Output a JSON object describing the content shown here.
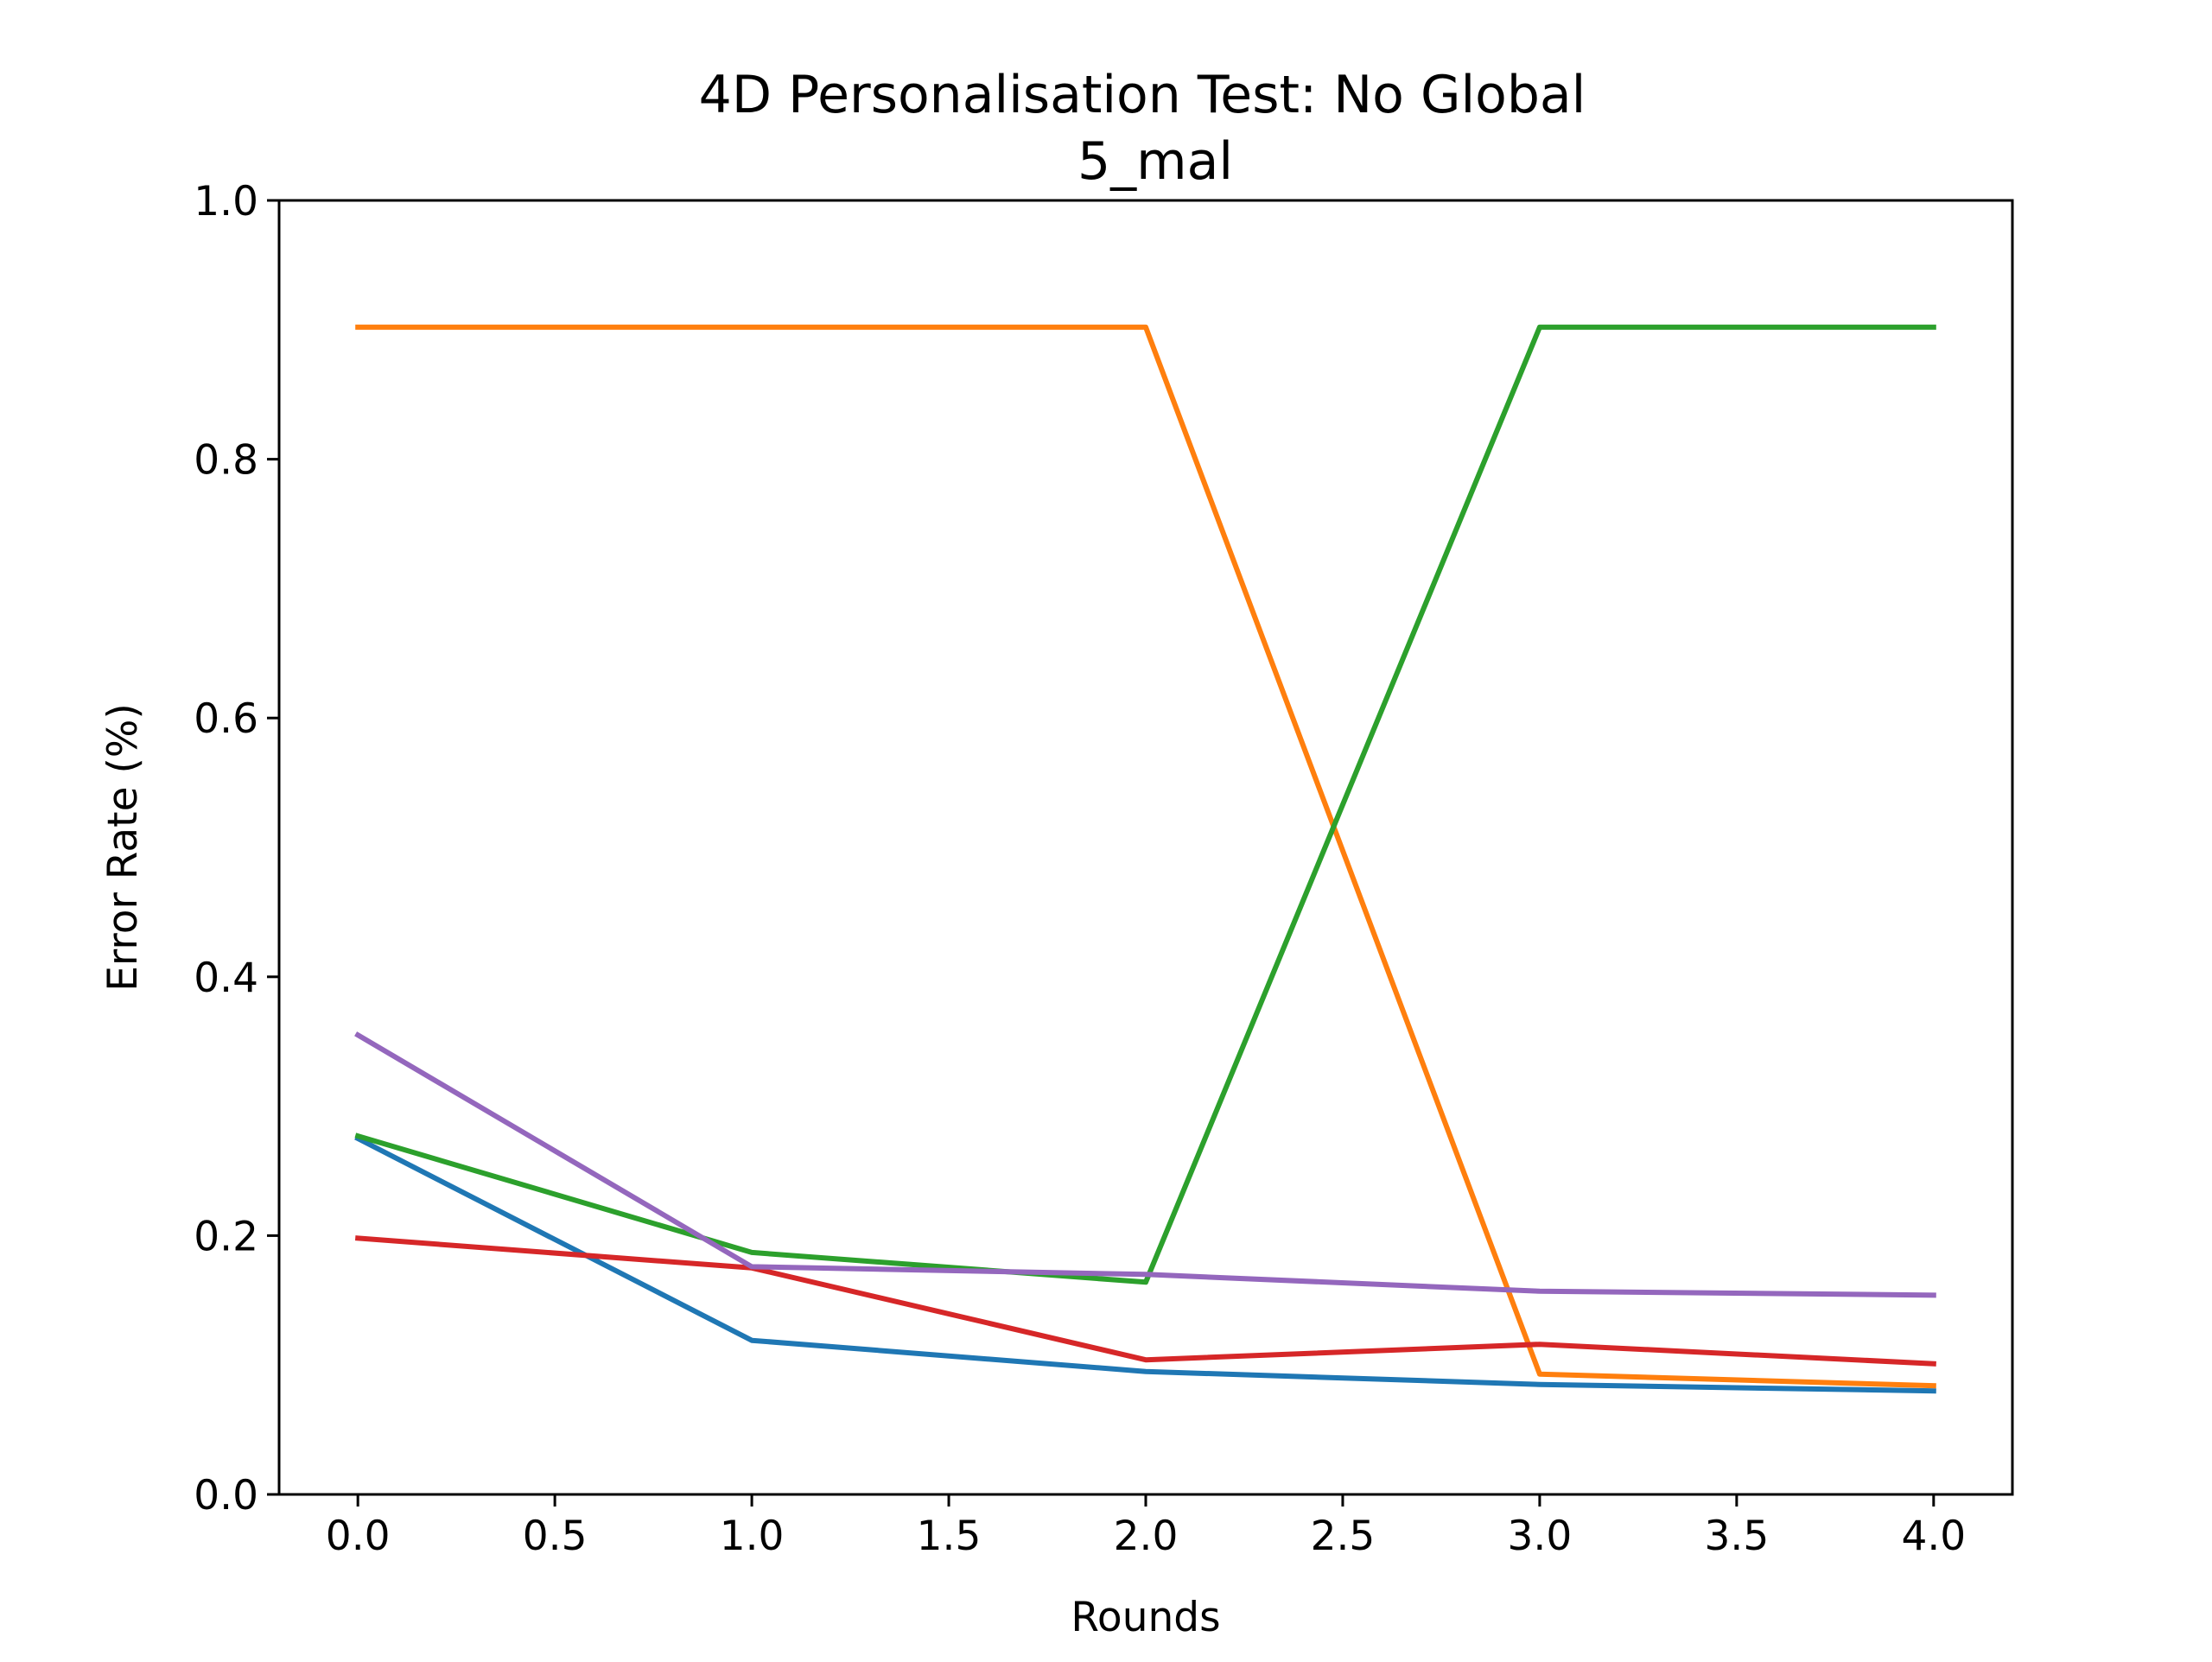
{
  "chart_data": {
    "type": "line",
    "title": "4D Personalisation Test: No Global",
    "subtitle": "5_mal",
    "xlabel": "Rounds",
    "ylabel": "Error Rate (%)",
    "xlim": [
      -0.2,
      4.2
    ],
    "ylim": [
      0.0,
      1.0
    ],
    "xticks": [
      "0.0",
      "0.5",
      "1.0",
      "1.5",
      "2.0",
      "2.5",
      "3.0",
      "3.5",
      "4.0"
    ],
    "yticks": [
      "0.0",
      "0.2",
      "0.4",
      "0.6",
      "0.8",
      "1.0"
    ],
    "grid": false,
    "legend": false,
    "x": [
      0,
      1,
      2,
      3,
      4
    ],
    "series": [
      {
        "color": "#1f77b4",
        "values": [
          0.275,
          0.119,
          0.095,
          0.085,
          0.08
        ]
      },
      {
        "color": "#ff7f0e",
        "values": [
          0.902,
          0.902,
          0.902,
          0.093,
          0.084
        ]
      },
      {
        "color": "#2ca02c",
        "values": [
          0.277,
          0.187,
          0.164,
          0.902,
          0.902
        ]
      },
      {
        "color": "#d62728",
        "values": [
          0.198,
          0.175,
          0.104,
          0.116,
          0.101
        ]
      },
      {
        "color": "#9467bd",
        "values": [
          0.355,
          0.176,
          0.17,
          0.157,
          0.154
        ]
      }
    ]
  }
}
